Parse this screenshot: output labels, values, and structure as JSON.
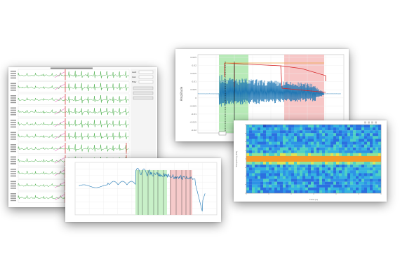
{
  "windows": {
    "ecg_grid": {
      "title": "",
      "trace_color": "#2ca02c",
      "marker_color": "#d62728",
      "ramp_color": "#e377c2"
    },
    "amplitude_plot": {
      "ylabel": "Amplitude",
      "y_ticks": [
        "0.025",
        "0.02",
        "0.015",
        "0.01",
        "0.005",
        "0",
        "-0.005",
        "-0.01",
        "-0.015",
        "-0.02"
      ],
      "signal_color": "#1f77b4",
      "envelope_color": "#d62728",
      "green_band": "#b7eab7",
      "red_band": "#f7c6c6"
    },
    "frequency_plot": {
      "signal_color": "#1f77b4",
      "green_band": "#c8f0c8",
      "red_band": "#f6caca"
    },
    "spectrogram": {
      "xlabel": "Time (s)",
      "ylabel": "Frequency (Hz)",
      "colorbar_label": ""
    }
  }
}
